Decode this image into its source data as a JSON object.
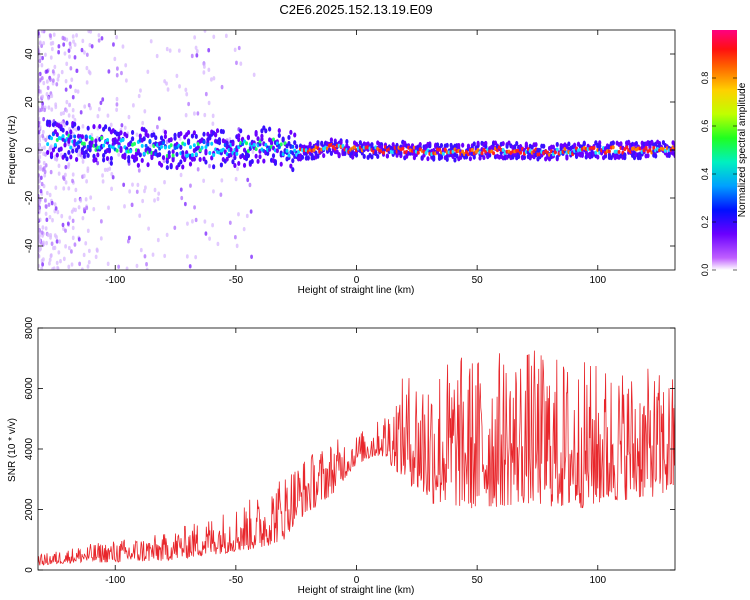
{
  "title": "C2E6.2025.152.13.19.E09",
  "chart_data": [
    {
      "type": "heatmap",
      "xlabel": "Height of straight line (km)",
      "ylabel": "Frequency (Hz)",
      "xlim": [
        -132,
        132
      ],
      "ylim": [
        -50,
        50
      ],
      "xticks": [
        -100,
        -50,
        0,
        50,
        100
      ],
      "yticks": [
        -40,
        -20,
        0,
        20,
        40
      ],
      "colorbar": {
        "label": "Normalized spectral amplitude",
        "range": [
          0,
          1
        ],
        "ticks": [
          "0.0",
          "0.2",
          "0.4",
          "0.6",
          "0.8"
        ]
      },
      "ridge": {
        "description_points_x": [
          -125,
          -100,
          -75,
          -50,
          -35,
          -25,
          -10,
          0,
          20,
          40,
          60,
          80,
          100,
          132
        ],
        "center_freq_hz": [
          4,
          2,
          0,
          1,
          2,
          -1,
          1,
          0,
          0,
          -1,
          0,
          -1,
          0,
          0
        ]
      }
    },
    {
      "type": "line",
      "xlabel": "Height of straight line (km)",
      "ylabel": "SNR (10 * v/v)",
      "xlim": [
        -132,
        132
      ],
      "ylim": [
        0,
        8000
      ],
      "xticks": [
        -100,
        -50,
        0,
        50,
        100
      ],
      "yticks": [
        0,
        2000,
        4000,
        6000,
        8000
      ],
      "color": "#e8262b",
      "envelope": {
        "x": [
          -132,
          -115,
          -100,
          -80,
          -60,
          -40,
          -30,
          -25,
          -10,
          0,
          10,
          20,
          30,
          50,
          70,
          90,
          110,
          132
        ],
        "base": [
          150,
          250,
          250,
          300,
          500,
          700,
          1000,
          1600,
          2500,
          3500,
          3800,
          3000,
          2200,
          2000,
          2200,
          2000,
          2300,
          2500
        ],
        "peak": [
          500,
          800,
          1000,
          1200,
          1800,
          2500,
          3300,
          3600,
          4300,
          4500,
          5000,
          6500,
          7000,
          7200,
          7400,
          7000,
          6800,
          6500
        ]
      }
    }
  ]
}
